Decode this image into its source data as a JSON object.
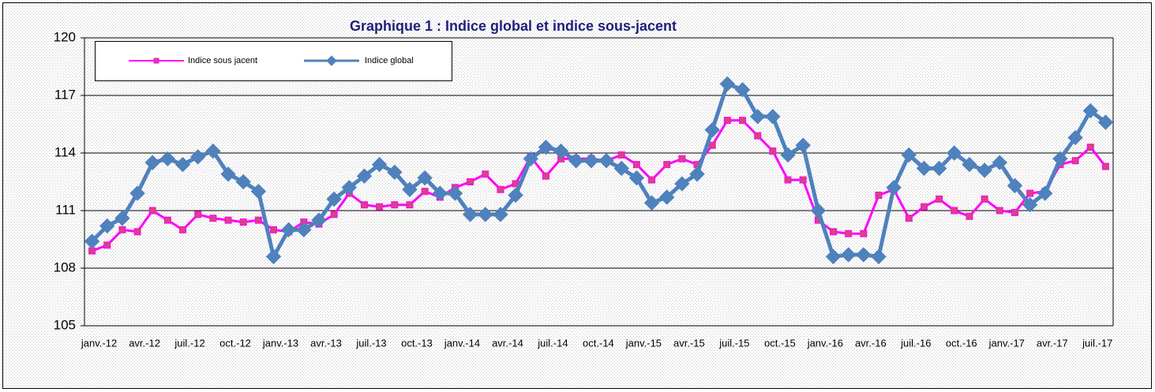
{
  "chart_data": {
    "type": "line",
    "title": "Graphique 1 : Indice global et indice sous-jacent",
    "categories": [
      "janv.-12",
      null,
      null,
      "avr.-12",
      null,
      null,
      "juil.-12",
      null,
      null,
      "oct.-12",
      null,
      null,
      "janv.-13",
      null,
      null,
      "avr.-13",
      null,
      null,
      "juil.-13",
      null,
      null,
      "oct.-13",
      null,
      null,
      "janv.-14",
      null,
      null,
      "avr.-14",
      null,
      null,
      "juil.-14",
      null,
      null,
      "oct.-14",
      null,
      null,
      "janv.-15",
      null,
      null,
      "avr.-15",
      null,
      null,
      "juil.-15",
      null,
      null,
      "oct.-15",
      null,
      null,
      "janv.-16",
      null,
      null,
      "avr.-16",
      null,
      null,
      "juil.-16",
      null,
      null,
      "oct.-16",
      null,
      null,
      "janv.-17",
      null,
      null,
      "avr.-17",
      null,
      null,
      "juil.-17",
      null
    ],
    "series": [
      {
        "name": "Indice sous jacent",
        "color": "#ff00ff",
        "marker": "square",
        "marker_color": "#d6457e",
        "values": [
          108.9,
          109.2,
          110.0,
          109.9,
          111.0,
          110.5,
          110.0,
          110.8,
          110.6,
          110.5,
          110.4,
          110.5,
          110.0,
          109.9,
          110.4,
          110.3,
          110.8,
          111.9,
          111.3,
          111.2,
          111.3,
          111.3,
          112.0,
          111.7,
          112.2,
          112.5,
          112.9,
          112.1,
          112.4,
          113.8,
          112.8,
          113.7,
          113.7,
          113.7,
          113.6,
          113.9,
          113.4,
          112.6,
          113.4,
          113.7,
          113.4,
          114.4,
          115.7,
          115.7,
          114.9,
          114.1,
          112.6,
          112.6,
          110.5,
          109.9,
          109.8,
          109.8,
          111.8,
          112.1,
          110.6,
          111.2,
          111.6,
          111.0,
          110.7,
          111.6,
          111.0,
          110.9,
          111.9,
          112.0,
          113.4,
          113.6,
          114.3,
          113.3
        ]
      },
      {
        "name": "Indice global",
        "color": "#4f81bd",
        "marker": "diamond",
        "marker_color": "#4f81bd",
        "values": [
          109.4,
          110.2,
          110.6,
          111.9,
          113.5,
          113.7,
          113.4,
          113.8,
          114.1,
          112.9,
          112.5,
          112.0,
          108.6,
          110.0,
          110.0,
          110.5,
          111.6,
          112.2,
          112.8,
          113.4,
          113.0,
          112.1,
          112.7,
          111.9,
          111.9,
          110.8,
          110.8,
          110.8,
          111.8,
          113.7,
          114.3,
          114.1,
          113.6,
          113.6,
          113.6,
          113.2,
          112.7,
          111.4,
          111.7,
          112.4,
          112.9,
          115.2,
          117.6,
          117.3,
          115.9,
          115.9,
          113.9,
          114.4,
          111.0,
          108.6,
          108.7,
          108.7,
          108.6,
          112.2,
          113.9,
          113.2,
          113.2,
          114.0,
          113.4,
          113.1,
          113.5,
          112.3,
          111.3,
          111.9,
          113.7,
          114.8,
          116.2,
          115.6
        ]
      }
    ],
    "ylim": [
      105,
      120
    ],
    "yticks": [
      105,
      108,
      111,
      114,
      117,
      120
    ],
    "grid": true,
    "legend": "top-left"
  }
}
